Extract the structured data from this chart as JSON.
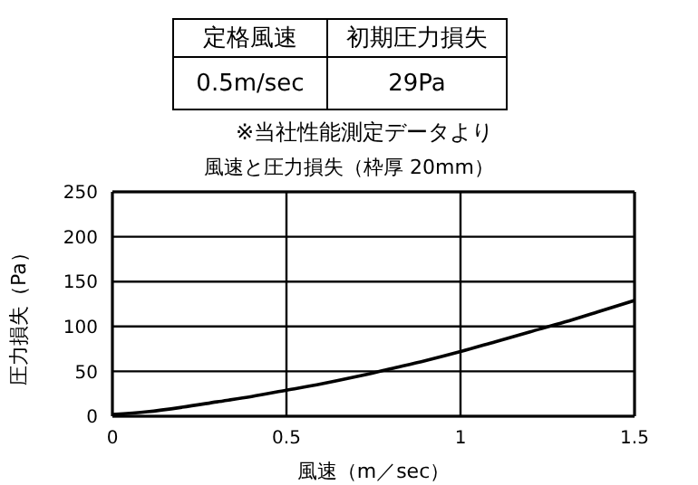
{
  "chart_data": {
    "type": "line",
    "title": "風速と圧力損失（枠厚 20mm）",
    "xlabel": "風速（m／sec）",
    "ylabel": "圧力損失（Pa）",
    "annotations": [
      "定格風速",
      "初期圧力損失",
      "0.5m/sec",
      "29Pa",
      "※当社性能測定データより"
    ],
    "x": [
      0,
      0.1,
      0.2,
      0.3,
      0.4,
      0.5,
      0.6,
      0.7,
      0.8,
      0.9,
      1.0,
      1.1,
      1.2,
      1.3,
      1.4,
      1.5
    ],
    "series": [
      {
        "color": "#000000",
        "values": [
          2,
          5,
          10,
          16,
          22,
          29,
          36,
          44,
          53,
          62,
          72,
          83,
          94,
          105,
          117,
          129
        ]
      }
    ],
    "xlim": [
      0,
      1.5
    ],
    "xticks": [
      0,
      0.5,
      1,
      1.5
    ],
    "ylim": [
      0,
      250
    ],
    "yticks": [
      0,
      50,
      100,
      150,
      200,
      250
    ],
    "grid": true,
    "marker": "none",
    "line_style": "solid"
  }
}
